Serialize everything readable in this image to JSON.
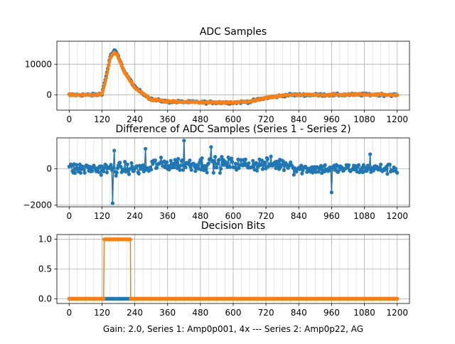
{
  "figure": {
    "footer": "Gain: 2.0, Series 1: Amp0p001, 4x --- Series 2: Amp0p22, AG"
  },
  "chart_data": [
    {
      "type": "scatter",
      "title": "ADC Samples",
      "xlabel": "",
      "ylabel": "",
      "xlim": [
        -45,
        1245
      ],
      "ylim": [
        -5000,
        17500
      ],
      "xticks": [
        0,
        120,
        240,
        360,
        480,
        600,
        720,
        840,
        960,
        1080,
        1200
      ],
      "yticks": [
        0,
        10000
      ],
      "ytick_labels": [
        "0",
        "10000"
      ],
      "grid": true,
      "series": [
        {
          "name": "Series 1",
          "color": "#1f77b4",
          "approx_points": [
            [
              0,
              0
            ],
            [
              100,
              0
            ],
            [
              120,
              500
            ],
            [
              135,
              6000
            ],
            [
              150,
              12500
            ],
            [
              165,
              14500
            ],
            [
              175,
              13500
            ],
            [
              200,
              8000
            ],
            [
              240,
              2500
            ],
            [
              300,
              -1500
            ],
            [
              360,
              -2200
            ],
            [
              480,
              -2400
            ],
            [
              600,
              -2500
            ],
            [
              660,
              -2200
            ],
            [
              720,
              -1000
            ],
            [
              800,
              0
            ],
            [
              960,
              0
            ],
            [
              1080,
              100
            ],
            [
              1200,
              0
            ]
          ]
        },
        {
          "name": "Series 2",
          "color": "#ff7f0e",
          "approx_points": [
            [
              0,
              0
            ],
            [
              100,
              0
            ],
            [
              120,
              300
            ],
            [
              135,
              5500
            ],
            [
              150,
              12000
            ],
            [
              165,
              13800
            ],
            [
              175,
              13200
            ],
            [
              200,
              7800
            ],
            [
              240,
              2300
            ],
            [
              300,
              -1500
            ],
            [
              360,
              -2200
            ],
            [
              480,
              -2400
            ],
            [
              600,
              -2500
            ],
            [
              660,
              -2200
            ],
            [
              720,
              -1000
            ],
            [
              800,
              0
            ],
            [
              960,
              0
            ],
            [
              1080,
              100
            ],
            [
              1200,
              0
            ]
          ]
        }
      ]
    },
    {
      "type": "line",
      "title": "Difference of ADC Samples (Series 1 - Series 2)",
      "xlabel": "",
      "ylabel": "",
      "xlim": [
        -45,
        1245
      ],
      "ylim": [
        -2100,
        1700
      ],
      "xticks": [
        0,
        120,
        240,
        360,
        480,
        600,
        720,
        840,
        960,
        1080,
        1200
      ],
      "yticks": [
        -2000,
        0
      ],
      "ytick_labels": [
        "−2000",
        "0"
      ],
      "grid": true,
      "series": [
        {
          "name": "Difference",
          "color": "#1f77b4",
          "noise_amplitude": 500,
          "extremes": [
            [
              160,
              -1900
            ],
            [
              165,
              1000
            ],
            [
              280,
              1100
            ],
            [
              420,
              1550
            ],
            [
              520,
              1200
            ],
            [
              960,
              -1300
            ],
            [
              1100,
              800
            ]
          ]
        }
      ]
    },
    {
      "type": "line",
      "title": "Decision Bits",
      "xlabel": "Gain: 2.0, Series 1: Amp0p001, 4x --- Series 2: Amp0p22, AG",
      "ylabel": "",
      "xlim": [
        -45,
        1245
      ],
      "ylim": [
        -0.08,
        1.08
      ],
      "xticks": [
        0,
        120,
        240,
        360,
        480,
        600,
        720,
        840,
        960,
        1080,
        1200
      ],
      "yticks": [
        0.0,
        0.5,
        1.0
      ],
      "ytick_labels": [
        "0.0",
        "0.5",
        "1.0"
      ],
      "grid": true,
      "series": [
        {
          "name": "Series 1",
          "color": "#1f77b4",
          "segments": [
            {
              "x_start": 0,
              "x_end": 1200,
              "value": 0
            }
          ]
        },
        {
          "name": "Series 2",
          "color": "#ff7f0e",
          "segments": [
            {
              "x_start": 0,
              "x_end": 128,
              "value": 0
            },
            {
              "x_start": 128,
              "x_end": 225,
              "value": 1
            },
            {
              "x_start": 225,
              "x_end": 1200,
              "value": 0
            }
          ]
        }
      ]
    }
  ]
}
